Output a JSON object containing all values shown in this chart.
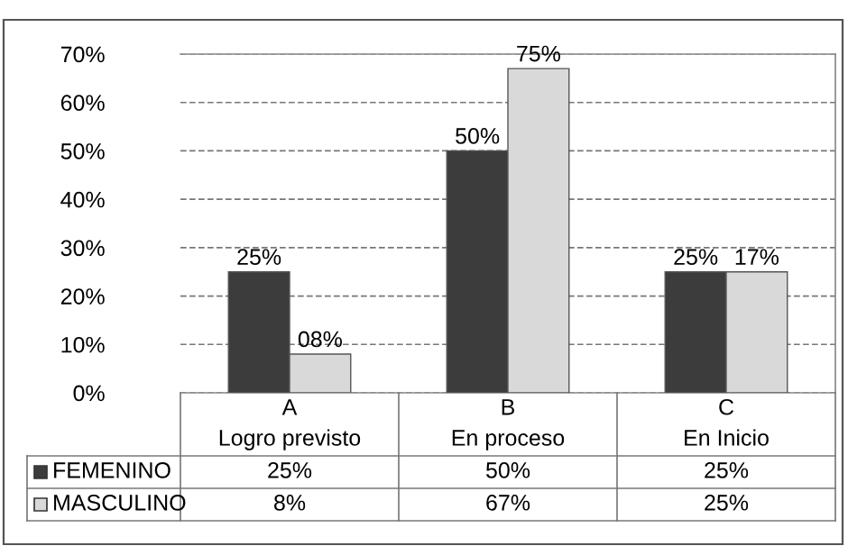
{
  "chart_data": {
    "type": "bar",
    "categories": [
      "A\nLogro previsto",
      "B\nEn proceso",
      "C\nEn Inicio"
    ],
    "series": [
      {
        "name": "FEMENINO",
        "color": "#3c3c3c",
        "values": [
          25,
          50,
          25
        ],
        "value_labels": [
          "25%",
          "50%",
          "25%"
        ]
      },
      {
        "name": "MASCULINO",
        "color": "#d9d9d9",
        "values": [
          8,
          67,
          25
        ],
        "value_labels": [
          "8%",
          "67%",
          "25%"
        ]
      }
    ],
    "annotations": [
      "25%",
      "50%",
      "25%",
      "08%",
      "75%",
      "17%"
    ],
    "ylim": [
      0,
      70
    ],
    "yticks": [
      {
        "value": 0,
        "label": "0%"
      },
      {
        "value": 10,
        "label": "10%"
      },
      {
        "value": 20,
        "label": "20%"
      },
      {
        "value": 30,
        "label": "30%"
      },
      {
        "value": 40,
        "label": "40%"
      },
      {
        "value": 50,
        "label": "50%"
      },
      {
        "value": 60,
        "label": "60%"
      },
      {
        "value": 70,
        "label": "70%"
      }
    ],
    "grid": "y",
    "legend": "bottom"
  }
}
